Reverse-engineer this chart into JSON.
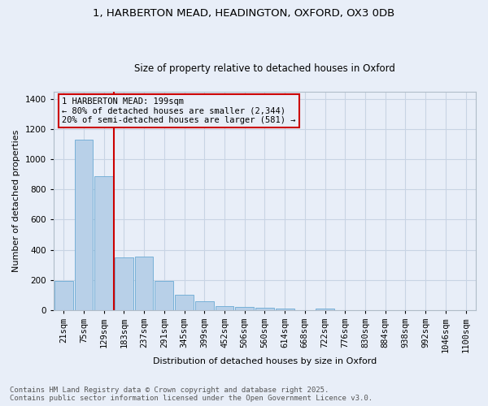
{
  "title_line1": "1, HARBERTON MEAD, HEADINGTON, OXFORD, OX3 0DB",
  "title_line2": "Size of property relative to detached houses in Oxford",
  "xlabel": "Distribution of detached houses by size in Oxford",
  "ylabel": "Number of detached properties",
  "categories": [
    "21sqm",
    "75sqm",
    "129sqm",
    "183sqm",
    "237sqm",
    "291sqm",
    "345sqm",
    "399sqm",
    "452sqm",
    "506sqm",
    "560sqm",
    "614sqm",
    "668sqm",
    "722sqm",
    "776sqm",
    "830sqm",
    "884sqm",
    "938sqm",
    "992sqm",
    "1046sqm",
    "1100sqm"
  ],
  "values": [
    195,
    1130,
    890,
    350,
    355,
    195,
    100,
    60,
    25,
    22,
    15,
    10,
    0,
    10,
    0,
    0,
    0,
    0,
    0,
    0,
    0
  ],
  "bar_color": "#b8d0e8",
  "bar_edge_color": "#6aaad4",
  "grid_color": "#c8d4e4",
  "background_color": "#e8eef8",
  "vline_x": 2.5,
  "vline_color": "#cc0000",
  "annotation_text": "1 HARBERTON MEAD: 199sqm\n← 80% of detached houses are smaller (2,344)\n20% of semi-detached houses are larger (581) →",
  "annotation_box_color": "#cc0000",
  "ylim": [
    0,
    1450
  ],
  "yticks": [
    0,
    200,
    400,
    600,
    800,
    1000,
    1200,
    1400
  ],
  "footer_line1": "Contains HM Land Registry data © Crown copyright and database right 2025.",
  "footer_line2": "Contains public sector information licensed under the Open Government Licence v3.0.",
  "title_fontsize": 9.5,
  "subtitle_fontsize": 8.5,
  "axis_label_fontsize": 8,
  "tick_fontsize": 7.5,
  "annotation_fontsize": 7.5,
  "footer_fontsize": 6.5
}
